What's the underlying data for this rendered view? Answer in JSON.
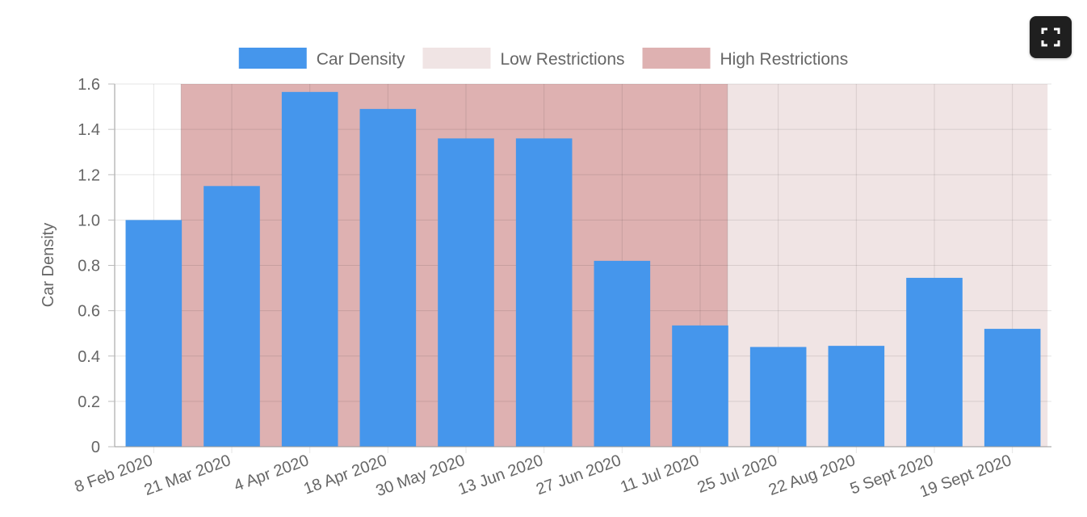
{
  "chart_data": {
    "type": "bar",
    "title": "",
    "xlabel": "",
    "ylabel": "Car Density",
    "ylim": [
      0,
      1.6
    ],
    "yticks": [
      "0",
      "0.2",
      "0.4",
      "0.6",
      "0.8",
      "1.0",
      "1.2",
      "1.4",
      "1.6"
    ],
    "categories": [
      "8 Feb 2020",
      "21 Mar 2020",
      "4 Apr 2020",
      "18 Apr 2020",
      "30 May 2020",
      "13 Jun 2020",
      "27 Jun 2020",
      "11 Jul 2020",
      "25 Jul 2020",
      "22 Aug 2020",
      "5 Sept 2020",
      "19 Sept 2020"
    ],
    "series": [
      {
        "name": "Car Density",
        "color": "#4596ec",
        "values": [
          1.0,
          1.15,
          1.565,
          1.49,
          1.36,
          1.36,
          0.82,
          0.535,
          0.44,
          0.445,
          0.745,
          0.52
        ]
      }
    ],
    "shaded_periods": [
      {
        "name": "High Restrictions",
        "color": "#deb1b1",
        "from": "21 Mar 2020",
        "to": "11 Jul 2020"
      },
      {
        "name": "Low Restrictions",
        "color": "#f0e4e4",
        "from": "25 Jul 2020",
        "to": "19 Sept 2020"
      }
    ],
    "legend": {
      "placement": "top-center",
      "entries": [
        {
          "label": "Car Density",
          "color": "#4596ec"
        },
        {
          "label": "Low Restrictions",
          "color": "#f0e4e4"
        },
        {
          "label": "High Restrictions",
          "color": "#deb1b1"
        }
      ]
    },
    "grid": true
  },
  "controls": {
    "fullscreen_icon": "fullscreen-icon"
  }
}
